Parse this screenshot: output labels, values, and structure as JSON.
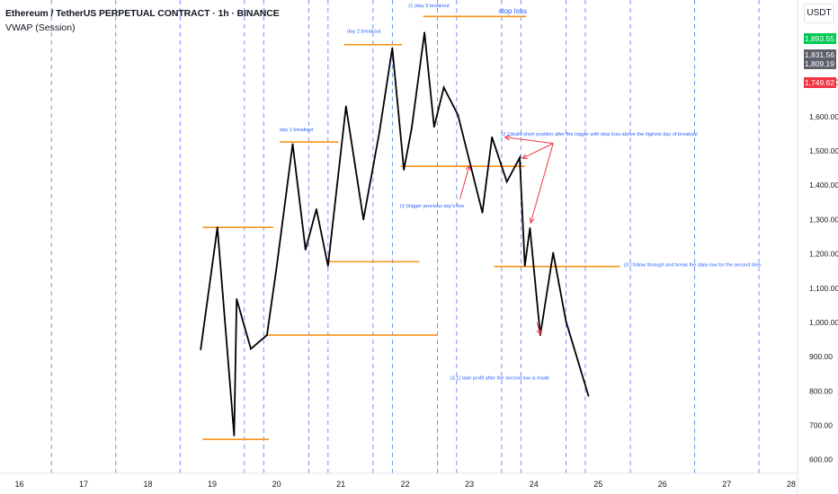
{
  "header": {
    "title": "Ethereum / TetherUS PERPETUAL CONTRACT · 1h · BINANCE",
    "indicator": "VWAP (Session)"
  },
  "price_scale": {
    "currency": "USDT",
    "tags": [
      {
        "label": "1,893.55",
        "color": "#00c853"
      },
      {
        "label": "1,831.56",
        "color": "#5d606b"
      },
      {
        "label": "1,809.19",
        "color": "#5d606b"
      },
      {
        "label": "1,749.62",
        "color": "#f23645"
      }
    ]
  },
  "colors": {
    "price_line": "#000000",
    "level_line": "#f7931a",
    "arrow": "#f23645",
    "annotation_text": "#2962ff",
    "day_separator": "#2962ff"
  },
  "chart_data": {
    "type": "line",
    "title": "Ethereum / TetherUS PERPETUAL CONTRACT · 1h · BINANCE",
    "x_axis": {
      "ticks": [
        "16",
        "17",
        "18",
        "19",
        "20",
        "21",
        "22",
        "23",
        "24",
        "25",
        "26",
        "27",
        "28"
      ],
      "range_days": [
        15.7,
        28.1
      ]
    },
    "y_axis": {
      "ticks": [
        600,
        700,
        800,
        900,
        1000,
        1100,
        1200,
        1300,
        1400,
        1500,
        1600,
        1700
      ],
      "tick_labels": [
        "600.00",
        "700.00",
        "800.00",
        "900.00",
        "1,000.00",
        "1,100.00",
        "1,200.00",
        "1,300.00",
        "1,400.00",
        "1,500.00",
        "1,600.00",
        "1,700.00"
      ],
      "range": [
        560,
        1940
      ]
    },
    "series": [
      {
        "x": [
          18.82,
          19.08,
          19.34,
          19.38,
          19.6,
          19.85,
          20.0,
          20.25,
          20.45,
          20.62,
          20.8,
          21.08,
          21.35,
          21.6,
          21.8,
          21.98,
          22.1,
          22.3,
          22.45,
          22.6,
          22.82,
          23.0,
          23.2,
          23.35,
          23.58,
          23.78,
          23.86,
          23.94,
          24.1,
          24.3,
          24.5,
          24.85
        ],
        "y": [
          921,
          1277,
          670,
          1068,
          923,
          963,
          1160,
          1520,
          1212,
          1330,
          1165,
          1630,
          1300,
          1555,
          1800,
          1445,
          1565,
          1845,
          1570,
          1685,
          1605,
          1470,
          1320,
          1540,
          1410,
          1480,
          1165,
          1275,
          963,
          1203,
          1003,
          786
        ]
      }
    ],
    "day_separators": [
      16.5,
      17.5,
      18.5,
      19.5,
      20.5,
      21.5,
      22.5,
      23.5,
      24.5,
      25.5,
      26.5,
      27.5
    ],
    "highlighted_separators": [
      19.8,
      20.8,
      21.8,
      22.8,
      23.8,
      24.8
    ],
    "levels": [
      {
        "y": 1277,
        "x1": 18.85,
        "x2": 19.95
      },
      {
        "y": 659,
        "x1": 18.85,
        "x2": 19.88
      },
      {
        "y": 963,
        "x1": 19.83,
        "x2": 22.5
      },
      {
        "y": 1526,
        "x1": 20.05,
        "x2": 20.96
      },
      {
        "y": 1177,
        "x1": 20.8,
        "x2": 22.22
      },
      {
        "y": 1810,
        "x1": 21.05,
        "x2": 21.95
      },
      {
        "y": 1455,
        "x1": 21.93,
        "x2": 23.86
      },
      {
        "y": 1892,
        "x1": 22.28,
        "x2": 23.88
      },
      {
        "y": 1163,
        "x1": 23.38,
        "x2": 25.34
      }
    ],
    "annotations": [
      {
        "text": "day 1 breakout",
        "x": 20.05,
        "y": 1558
      },
      {
        "text": "day 2 breakout",
        "x": 21.1,
        "y": 1845
      },
      {
        "text": "(1.)day 3 breakout",
        "x": 22.05,
        "y": 1919
      },
      {
        "text": "stop loss",
        "x": 23.45,
        "y": 1901
      },
      {
        "text": "(2.1)build short position after the trigger with stop loss above the highest day of breakout",
        "x": 23.49,
        "y": 1545
      },
      {
        "text": "(2.)trigger previous day's low",
        "x": 21.92,
        "y": 1335
      },
      {
        "text": "(3.) follow through and break the daily low for the second time",
        "x": 25.4,
        "y": 1163
      },
      {
        "text": "(3.1) take profit after the second low is made",
        "x": 22.7,
        "y": 833
      }
    ],
    "arrows": [
      {
        "from": [
          24.3,
          1522
        ],
        "to": [
          23.55,
          1540
        ]
      },
      {
        "from": [
          24.3,
          1522
        ],
        "to": [
          23.82,
          1478
        ]
      },
      {
        "from": [
          24.3,
          1522
        ],
        "to": [
          23.95,
          1290
        ]
      },
      {
        "from": [
          22.85,
          1360
        ],
        "to": [
          23.0,
          1458
        ]
      },
      {
        "from": [
          24.05,
          1000
        ],
        "to": [
          24.1,
          965
        ]
      }
    ]
  }
}
